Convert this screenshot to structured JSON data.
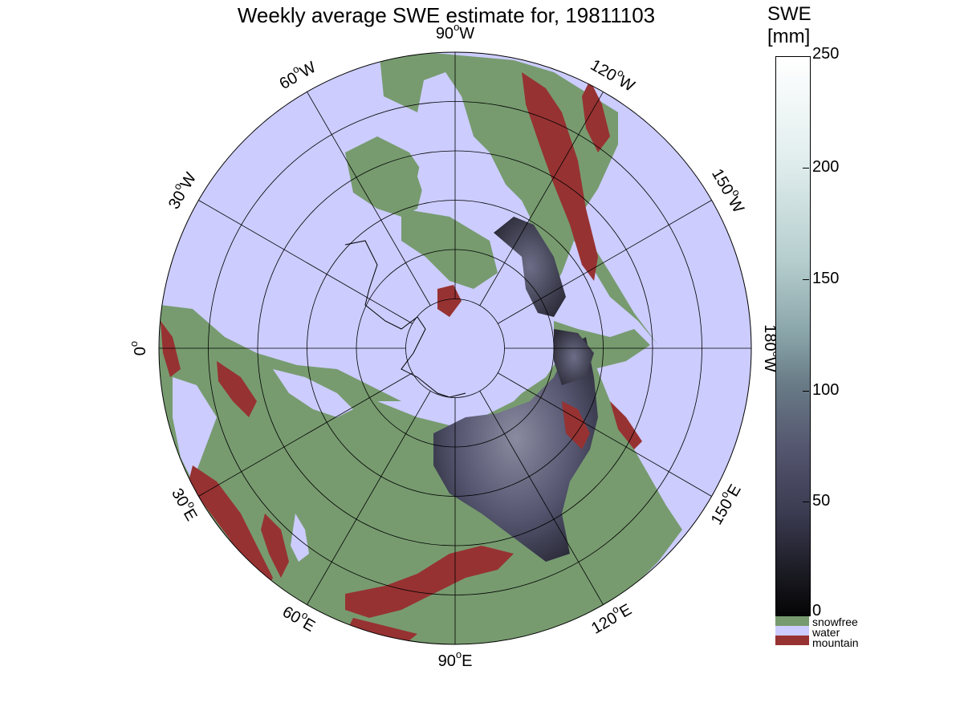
{
  "title": "Weekly average SWE estimate for, 19811103",
  "map": {
    "projection": "north-polar-stereographic",
    "lon_labels": [
      {
        "text": "90",
        "suffix": "W"
      },
      {
        "text": "120",
        "suffix": "W"
      },
      {
        "text": "150",
        "suffix": "W"
      },
      {
        "text": "180",
        "suffix": "W"
      },
      {
        "text": "150",
        "suffix": "E"
      },
      {
        "text": "120",
        "suffix": "E"
      },
      {
        "text": "90",
        "suffix": "E"
      },
      {
        "text": "60",
        "suffix": "E"
      },
      {
        "text": "30",
        "suffix": "E"
      },
      {
        "text": "0",
        "suffix": ""
      },
      {
        "text": "30",
        "suffix": "W"
      },
      {
        "text": "60",
        "suffix": "W"
      }
    ],
    "colors": {
      "snowfree": "#779b6f",
      "water": "#ccccff",
      "mountain": "#973232",
      "swe_low": "#0a0a0f",
      "swe_mid": "#4a4a66",
      "swe_high": "#f5fafa"
    }
  },
  "colorbar": {
    "label_line1": "SWE",
    "label_line2": "[mm]",
    "ticks": [
      "250",
      "200",
      "150",
      "100",
      "50",
      "0"
    ],
    "range": [
      0,
      250
    ],
    "categories": [
      {
        "name": "snowfree",
        "color": "#779b6f"
      },
      {
        "name": "water",
        "color": "#ccccff"
      },
      {
        "name": "mountain",
        "color": "#973232"
      }
    ]
  }
}
